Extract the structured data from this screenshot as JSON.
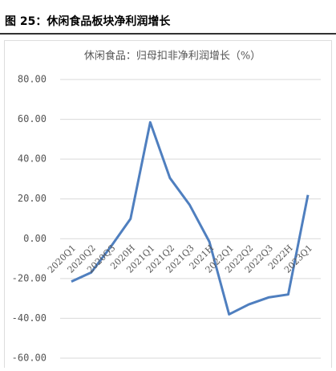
{
  "header": "图 25：休闲食品板块净利润增长",
  "chart_data": {
    "type": "line",
    "title": "休闲食品：归母扣非净利润增长（%）",
    "categories": [
      "2020Q1",
      "2020Q2",
      "2020Q3",
      "2020H",
      "2021Q1",
      "2021Q2",
      "2021Q3",
      "2021H",
      "2022Q1",
      "2022Q2",
      "2022Q3",
      "2022H",
      "2023Q1"
    ],
    "series": [
      {
        "color": "#4f7fbf",
        "values": [
          -21.5,
          -17,
          -4,
          10,
          58.5,
          30.5,
          17,
          -1.5,
          -38,
          -33,
          -29.5,
          -28,
          22
        ]
      }
    ],
    "ylim": [
      -60,
      80
    ],
    "yticks": [
      {
        "value": 80,
        "label": "80.00"
      },
      {
        "value": 60,
        "label": "60.00"
      },
      {
        "value": 40,
        "label": "40.00"
      },
      {
        "value": 20,
        "label": "20.00"
      },
      {
        "value": 0,
        "label": "0.00"
      },
      {
        "value": -20,
        "label": "-20.00"
      },
      {
        "value": -40,
        "label": "-40.00"
      },
      {
        "value": -60,
        "label": "-60.00"
      }
    ],
    "grid": true
  }
}
